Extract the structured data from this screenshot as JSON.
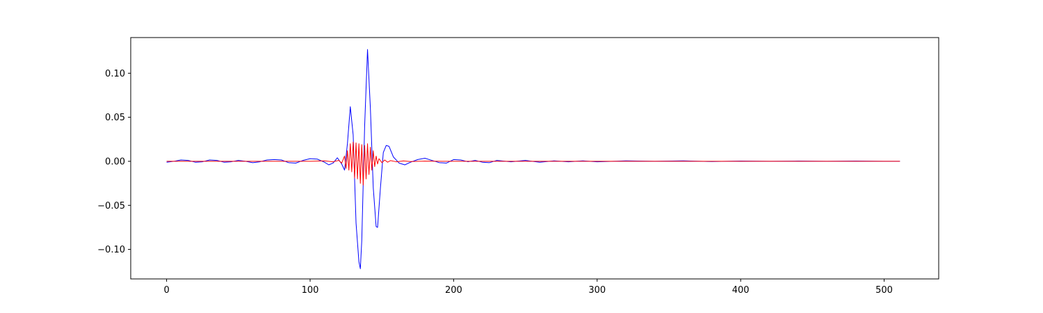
{
  "chart_data": {
    "type": "line",
    "title": "",
    "xlabel": "",
    "ylabel": "",
    "xlim": [
      -25,
      538
    ],
    "ylim": [
      -0.1335,
      0.1405
    ],
    "xticks": [
      0,
      100,
      200,
      300,
      400,
      500
    ],
    "xtick_labels": [
      "0",
      "100",
      "200",
      "300",
      "400",
      "500"
    ],
    "yticks": [
      -0.1,
      -0.05,
      0.0,
      0.05,
      0.1
    ],
    "ytick_labels": [
      "−0.10",
      "−0.05",
      "0.00",
      "0.05",
      "0.10"
    ],
    "grid": false,
    "series": [
      {
        "color": "#0000ff",
        "x": [
          0,
          5,
          10,
          15,
          20,
          25,
          30,
          35,
          40,
          45,
          50,
          55,
          60,
          65,
          70,
          75,
          80,
          85,
          90,
          95,
          100,
          105,
          110,
          113,
          116,
          119,
          122,
          124,
          126,
          128,
          130,
          132,
          134,
          135,
          136,
          138,
          140,
          142,
          144,
          146,
          147,
          149,
          151,
          153,
          155,
          158,
          162,
          166,
          170,
          175,
          180,
          185,
          190,
          195,
          200,
          205,
          210,
          215,
          220,
          225,
          230,
          240,
          250,
          260,
          270,
          280,
          290,
          300,
          320,
          340,
          360,
          380,
          400,
          420,
          440,
          460,
          480,
          500,
          511
        ],
        "y": [
          -0.001,
          0.0,
          0.0015,
          0.001,
          -0.001,
          -0.0005,
          0.0015,
          0.001,
          -0.001,
          -0.0005,
          0.001,
          0.0,
          -0.0015,
          -0.0005,
          0.0015,
          0.002,
          0.0015,
          -0.0015,
          -0.002,
          0.001,
          0.003,
          0.0025,
          -0.001,
          -0.004,
          -0.002,
          0.004,
          -0.003,
          -0.01,
          0.02,
          0.062,
          0.03,
          -0.07,
          -0.114,
          -0.122,
          -0.09,
          0.04,
          0.127,
          0.06,
          -0.03,
          -0.074,
          -0.075,
          -0.03,
          0.01,
          0.018,
          0.017,
          0.005,
          -0.002,
          -0.004,
          -0.001,
          0.002,
          0.0035,
          0.001,
          -0.0015,
          -0.002,
          0.002,
          0.0015,
          -0.0005,
          0.001,
          -0.001,
          -0.0015,
          0.001,
          -0.0005,
          0.001,
          -0.001,
          0.0005,
          -0.0005,
          0.0005,
          -0.0005,
          0.0005,
          0.0,
          0.0005,
          -0.0003,
          0.0003,
          0.0,
          0.0003,
          0.0,
          0.0003,
          0.0,
          0.0
        ]
      },
      {
        "color": "#ff0000",
        "x": [
          0,
          20,
          40,
          60,
          80,
          100,
          110,
          116,
          120,
          122,
          124,
          125,
          126,
          127,
          128,
          129,
          130,
          131,
          132,
          133,
          134,
          135,
          136,
          137,
          138,
          139,
          140,
          141,
          142,
          143,
          144,
          145,
          146,
          147,
          148,
          150,
          152,
          154,
          156,
          160,
          165,
          170,
          180,
          200,
          250,
          300,
          400,
          511
        ],
        "y": [
          0.0,
          0.0,
          0.0,
          0.0,
          0.0,
          0.0,
          0.0005,
          -0.0005,
          0.001,
          -0.002,
          0.006,
          -0.008,
          0.012,
          -0.01,
          0.02,
          -0.012,
          0.022,
          -0.019,
          0.021,
          -0.02,
          0.02,
          -0.025,
          0.019,
          -0.027,
          0.018,
          -0.02,
          0.02,
          -0.015,
          0.016,
          -0.01,
          0.012,
          -0.006,
          0.006,
          -0.003,
          0.003,
          -0.0015,
          0.0015,
          -0.001,
          0.0008,
          -0.0005,
          0.0004,
          -0.0003,
          0.0002,
          0.0,
          0.0,
          0.0,
          0.0,
          0.0
        ]
      }
    ]
  }
}
